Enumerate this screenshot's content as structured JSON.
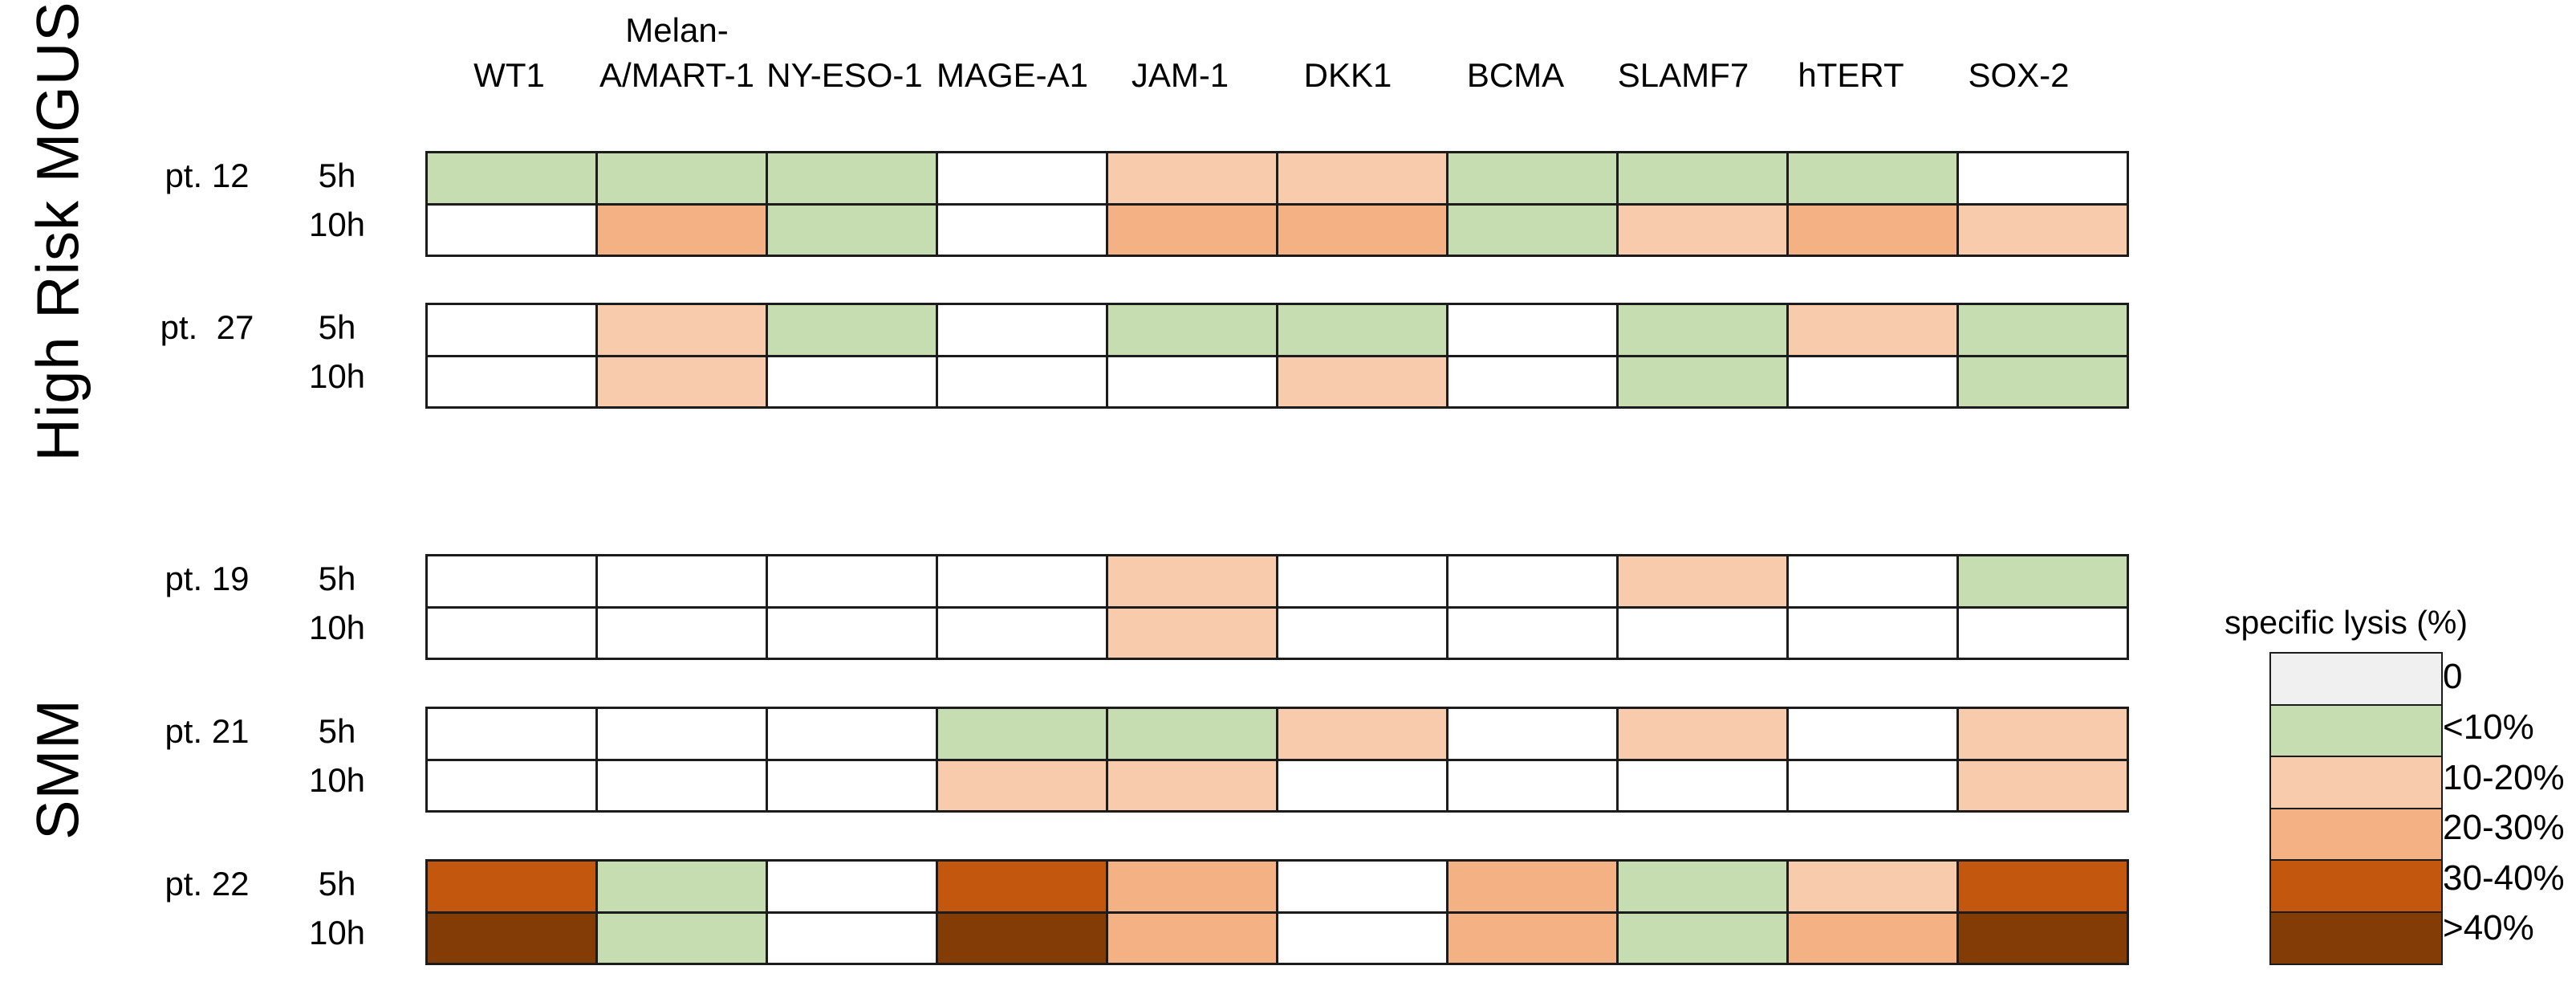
{
  "chart_data": {
    "type": "heatmap",
    "columns": [
      "WT1",
      "Melan-A/MART-1",
      "NY-ESO-1",
      "MAGE-A1",
      "JAM-1",
      "DKK1",
      "BCMA",
      "SLAMF7",
      "hTERT",
      "SOX-2"
    ],
    "columns_display": [
      [
        "WT1"
      ],
      [
        "Melan-",
        "A/MART-1"
      ],
      [
        "NY-ESO-1"
      ],
      [
        "MAGE-A1"
      ],
      [
        "JAM-1"
      ],
      [
        "DKK1"
      ],
      [
        "BCMA"
      ],
      [
        "SLAMF7"
      ],
      [
        "hTERT"
      ],
      [
        "SOX-2"
      ]
    ],
    "value_unit": "specific lysis (%) bucket",
    "groups": [
      {
        "label": "High Risk MGUS",
        "patients": [
          {
            "label": "pt. 12",
            "timepoints": [
              {
                "label": "5h",
                "values": [
                  "<10%",
                  "<10%",
                  "<10%",
                  "0",
                  "10-20%",
                  "10-20%",
                  "<10%",
                  "<10%",
                  "<10%",
                  "0"
                ]
              },
              {
                "label": "10h",
                "values": [
                  "0",
                  "20-30%",
                  "<10%",
                  "0",
                  "20-30%",
                  "20-30%",
                  "<10%",
                  "10-20%",
                  "20-30%",
                  "10-20%"
                ]
              }
            ]
          },
          {
            "label": "pt.  27",
            "timepoints": [
              {
                "label": "5h",
                "values": [
                  "0",
                  "10-20%",
                  "<10%",
                  "0",
                  "<10%",
                  "<10%",
                  "0",
                  "<10%",
                  "10-20%",
                  "<10%"
                ]
              },
              {
                "label": "10h",
                "values": [
                  "0",
                  "10-20%",
                  "0",
                  "0",
                  "0",
                  "10-20%",
                  "0",
                  "<10%",
                  "0",
                  "<10%"
                ]
              }
            ]
          }
        ]
      },
      {
        "label": "SMM",
        "patients": [
          {
            "label": "pt. 19",
            "timepoints": [
              {
                "label": "5h",
                "values": [
                  "0",
                  "0",
                  "0",
                  "0",
                  "10-20%",
                  "0",
                  "0",
                  "10-20%",
                  "0",
                  "<10%"
                ]
              },
              {
                "label": "10h",
                "values": [
                  "0",
                  "0",
                  "0",
                  "0",
                  "10-20%",
                  "0",
                  "0",
                  "0",
                  "0",
                  "0"
                ]
              }
            ]
          },
          {
            "label": "pt. 21",
            "timepoints": [
              {
                "label": "5h",
                "values": [
                  "0",
                  "0",
                  "0",
                  "<10%",
                  "<10%",
                  "10-20%",
                  "0",
                  "10-20%",
                  "0",
                  "10-20%"
                ]
              },
              {
                "label": "10h",
                "values": [
                  "0",
                  "0",
                  "0",
                  "10-20%",
                  "10-20%",
                  "0",
                  "0",
                  "0",
                  "0",
                  "10-20%"
                ]
              }
            ]
          },
          {
            "label": "pt. 22",
            "timepoints": [
              {
                "label": "5h",
                "values": [
                  "30-40%",
                  "<10%",
                  "0",
                  "30-40%",
                  "20-30%",
                  "0",
                  "20-30%",
                  "<10%",
                  "10-20%",
                  "30-40%"
                ]
              },
              {
                "label": "10h",
                "values": [
                  ">40%",
                  "<10%",
                  "0",
                  ">40%",
                  "20-30%",
                  "0",
                  "20-30%",
                  "<10%",
                  "20-30%",
                  ">40%"
                ]
              }
            ]
          }
        ]
      }
    ],
    "legend": {
      "title": "specific lysis (%)",
      "entries": [
        {
          "label": "0",
          "swatch": "#f0f0f0"
        },
        {
          "label": "<10%",
          "swatch": "#c6ddb2"
        },
        {
          "label": "10-20%",
          "swatch": "#f8cbad"
        },
        {
          "label": "20-30%",
          "swatch": "#f4b183"
        },
        {
          "label": "30-40%",
          "swatch": "#c4570e"
        },
        {
          "label": ">40%",
          "swatch": "#833c06"
        }
      ]
    },
    "cell_colors": {
      "0": "#ffffff",
      "<10%": "#c6ddb2",
      "10-20%": "#f8cbad",
      "20-30%": "#f4b183",
      "30-40%": "#c4570e",
      ">40%": "#833c06"
    }
  }
}
